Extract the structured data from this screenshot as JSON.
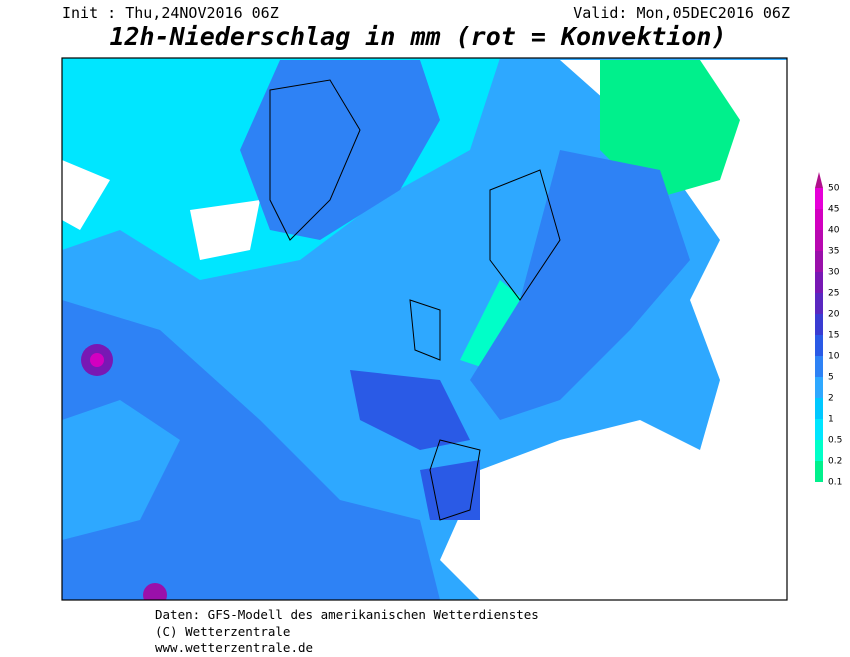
{
  "header": {
    "init": "Init : Thu,24NOV2016 06Z",
    "valid": "Valid: Mon,05DEC2016 06Z",
    "title": "12h-Niederschlag in mm (rot = Konvektion)"
  },
  "legend": {
    "levels": [
      0.1,
      0.2,
      0.5,
      1,
      2,
      5,
      10,
      15,
      20,
      25,
      30,
      35,
      40,
      45,
      50
    ],
    "colors": [
      "#00f08c",
      "#00ffc8",
      "#00e6ff",
      "#00c8ff",
      "#2ea8ff",
      "#2e82f5",
      "#2a5ae6",
      "#3a3cd2",
      "#5a28c0",
      "#7818b4",
      "#9a10aa",
      "#b808b0",
      "#d200c0",
      "#e600d8",
      "#b0108c"
    ]
  },
  "footer": {
    "line1": "Daten: GFS-Modell des amerikanischen Wetterdienstes",
    "line2": "(C) Wetterzentrale",
    "line3": "www.wetterzentrale.de"
  }
}
